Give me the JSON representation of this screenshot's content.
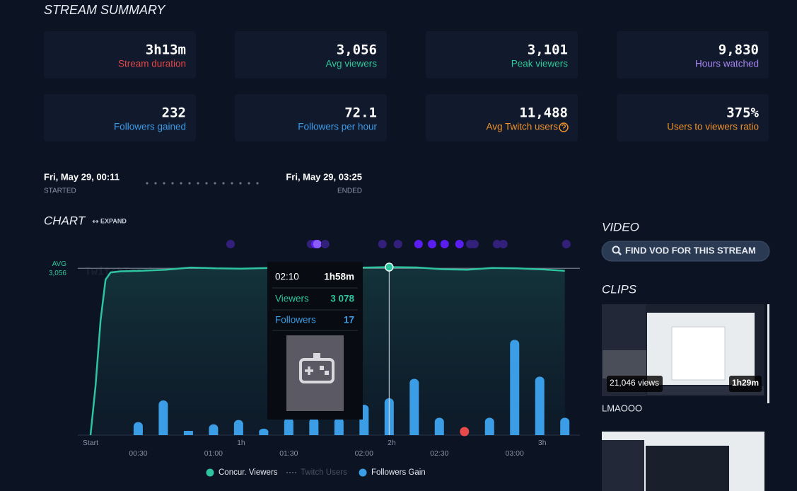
{
  "header": {
    "title": "STREAM SUMMARY"
  },
  "stats": [
    {
      "value": "3h13m",
      "label": "Stream duration",
      "color": "#e8464a"
    },
    {
      "value": "3,056",
      "label": "Avg viewers",
      "color": "#2ec79a"
    },
    {
      "value": "3,101",
      "label": "Peak viewers",
      "color": "#2ec79a"
    },
    {
      "value": "9,830",
      "label": "Hours watched",
      "color": "#a884f2"
    },
    {
      "value": "232",
      "label": "Followers gained",
      "color": "#3e9be8"
    },
    {
      "value": "72.1",
      "label": "Followers per hour",
      "color": "#3e9be8"
    },
    {
      "value": "11,488",
      "label": "Avg Twitch users",
      "color": "#f0922b",
      "info": true
    },
    {
      "value": "375%",
      "label": "Users to viewers ratio",
      "color": "#f0922b"
    }
  ],
  "timeline": {
    "start": "Fri, May 29, 00:11",
    "start_label": "STARTED",
    "end": "Fri, May 29, 03:25",
    "end_label": "ENDED"
  },
  "chart_section": {
    "title": "CHART",
    "expand": "EXPAND"
  },
  "chart_data": {
    "type": "line",
    "watermark": "TwitchTracker.com",
    "xlim": [
      0,
      195
    ],
    "ylim": [
      0,
      3370
    ],
    "y2lim": [
      0,
      85
    ],
    "xticks": [
      {
        "value": 0,
        "label": "Start"
      },
      {
        "value": 60,
        "label": "1h"
      },
      {
        "value": 120,
        "label": "2h"
      },
      {
        "value": 180,
        "label": "3h"
      }
    ],
    "xticks_clock": [
      {
        "value": 19,
        "label": "00:30"
      },
      {
        "value": 49,
        "label": "01:00"
      },
      {
        "value": 79,
        "label": "01:30"
      },
      {
        "value": 109,
        "label": "02:00"
      },
      {
        "value": 139,
        "label": "02:30"
      },
      {
        "value": 169,
        "label": "03:00"
      }
    ],
    "avg": {
      "label": "AVG",
      "value": 3056,
      "value_label": "3,056"
    },
    "series": [
      {
        "name": "Concur. Viewers",
        "color": "#2ec4a0",
        "x": [
          0,
          2,
          4,
          6,
          8,
          12,
          20,
          30,
          40,
          50,
          60,
          70,
          80,
          90,
          100,
          110,
          119,
          130,
          140,
          150,
          160,
          170,
          180,
          189
        ],
        "values": [
          0,
          900,
          2100,
          2850,
          2980,
          3000,
          3010,
          3030,
          3070,
          3055,
          3050,
          3060,
          3058,
          3050,
          3062,
          3070,
          3078,
          3072,
          3040,
          3030,
          3062,
          3055,
          3035,
          3010
        ]
      },
      {
        "name": "Twitch Users",
        "color": "#4a5262",
        "hidden": true
      },
      {
        "name": "Followers Gain",
        "color": "#3a9de6",
        "negative_color": "#e84a4a",
        "axis": "y2",
        "x": [
          19,
          29,
          39,
          49,
          59,
          69,
          79,
          89,
          99,
          109,
          119,
          129,
          139,
          149,
          159,
          169,
          179,
          189
        ],
        "values": [
          6,
          16,
          2,
          5,
          7,
          3,
          8,
          8,
          8,
          14,
          17,
          26,
          8,
          0,
          8,
          44,
          27,
          8
        ]
      }
    ],
    "events": {
      "x": [
        55.8,
        87.9,
        89.6,
        90.4,
        93.5,
        116.3,
        122.5,
        130.7,
        136.1,
        141.1,
        147,
        151.3,
        153,
        162,
        164.5,
        189.6
      ],
      "colors": [
        "#33207a",
        "#33207a",
        "#5a1ef0",
        "#8a5cff",
        "#33207a",
        "#33207a",
        "#33207a",
        "#5a1ef0",
        "#5a1ef0",
        "#5a1ef0",
        "#5a1ef0",
        "#33207a",
        "#33207a",
        "#33207a",
        "#33207a",
        "#33207a"
      ]
    },
    "tooltip": {
      "time": "02:10",
      "elapsed": "1h58m",
      "x": 119,
      "rows": [
        {
          "label": "Viewers",
          "value": 3078,
          "value_label": "3 078"
        },
        {
          "label": "Followers",
          "value": 17
        }
      ]
    }
  },
  "video": {
    "title": "VIDEO",
    "button": "FIND VOD FOR THIS STREAM"
  },
  "clips": {
    "title": "CLIPS",
    "items": [
      {
        "views": "21,046 views",
        "duration": "1h29m",
        "title": "LMAOOO"
      }
    ]
  }
}
